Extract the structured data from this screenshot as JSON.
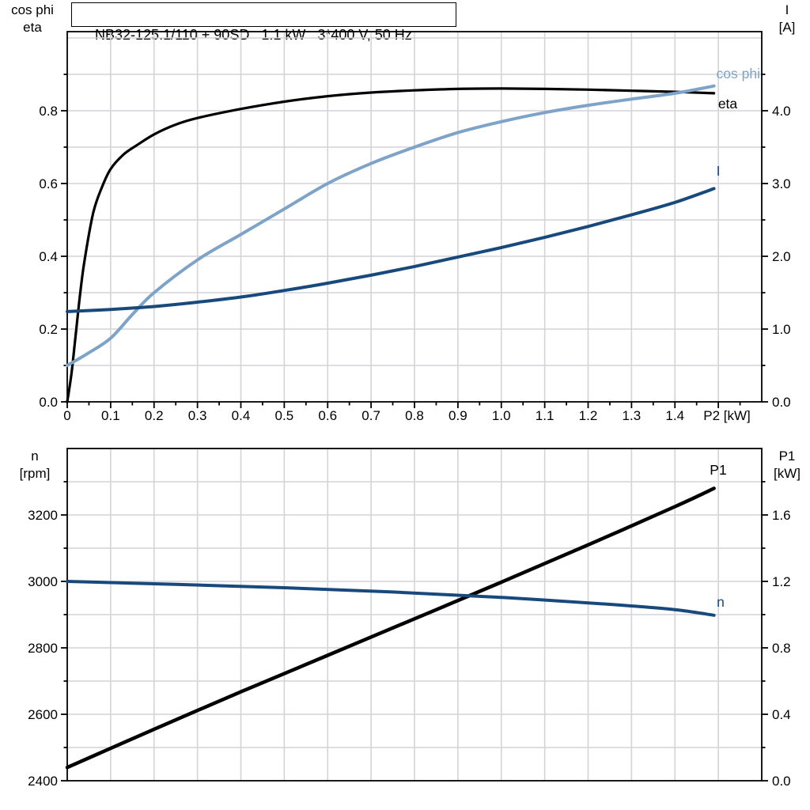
{
  "title": "NB32-125.1/110 + 90SD   1.1 kW   3*400 V, 50 Hz",
  "axis_corner_labels": {
    "top_left_line1": "cos phi",
    "top_left_line2": "eta",
    "top_right_line1": "I",
    "top_right_line2": "[A]",
    "bottom_left_line1": "n",
    "bottom_left_line2": "[rpm]",
    "bottom_right_line1": "P1",
    "bottom_right_line2": "[kW]"
  },
  "colors": {
    "black_curve": "#000000",
    "light_blue_curve": "#7EA3C8",
    "dark_blue_curve": "#17497C",
    "grid": "#D4D4D8",
    "axis": "#000000"
  },
  "chart_data": [
    {
      "name": "motor-performance",
      "type": "line",
      "xlabel": "P2 [kW]",
      "xlim": [
        0,
        1.6
      ],
      "x_ticks": {
        "values": [
          0,
          0.1,
          0.2,
          0.3,
          0.4,
          0.5,
          0.6,
          0.7,
          0.8,
          0.9,
          1.0,
          1.1,
          1.2,
          1.3,
          1.4
        ],
        "labels": [
          "0",
          "0.1",
          "0.2",
          "0.3",
          "0.4",
          "0.5",
          "0.6",
          "0.7",
          "0.8",
          "0.9",
          "1.0",
          "1.1",
          "1.2",
          "1.3",
          "1.4"
        ]
      },
      "left_axis": {
        "title": "cos phi / eta",
        "lim": [
          0,
          1.0174
        ],
        "ticks": [
          0.0,
          0.2,
          0.4,
          0.6,
          0.8
        ],
        "tick_labels": [
          "0.0",
          "0.2",
          "0.4",
          "0.6",
          "0.8"
        ]
      },
      "right_axis": {
        "title": "I [A]",
        "lim": [
          0,
          5.087
        ],
        "ticks": [
          0.0,
          1.0,
          2.0,
          3.0,
          4.0
        ],
        "tick_labels": [
          "0.0",
          "1.0",
          "2.0",
          "3.0",
          "4.0"
        ]
      },
      "grid": {
        "x_step": 0.1,
        "left_step": 0.1,
        "visible": true
      },
      "legend_position": "end-of-curve",
      "series": [
        {
          "name": "eta",
          "axis": "left",
          "color": "#000000",
          "x": [
            0,
            0.01,
            0.02,
            0.03,
            0.04,
            0.06,
            0.08,
            0.1,
            0.13,
            0.16,
            0.2,
            0.25,
            0.3,
            0.4,
            0.5,
            0.6,
            0.7,
            0.8,
            0.9,
            1.0,
            1.1,
            1.2,
            1.3,
            1.4,
            1.49
          ],
          "y": [
            0,
            0.08,
            0.19,
            0.3,
            0.39,
            0.52,
            0.59,
            0.64,
            0.68,
            0.705,
            0.735,
            0.762,
            0.78,
            0.805,
            0.825,
            0.84,
            0.85,
            0.856,
            0.86,
            0.861,
            0.86,
            0.858,
            0.855,
            0.852,
            0.848
          ]
        },
        {
          "name": "cos phi",
          "axis": "left",
          "color": "#7EA3C8",
          "x": [
            0,
            0.05,
            0.1,
            0.15,
            0.2,
            0.3,
            0.4,
            0.5,
            0.6,
            0.7,
            0.8,
            0.9,
            1.0,
            1.1,
            1.2,
            1.3,
            1.4,
            1.49
          ],
          "y": [
            0.1,
            0.135,
            0.175,
            0.24,
            0.3,
            0.39,
            0.46,
            0.53,
            0.6,
            0.655,
            0.7,
            0.74,
            0.77,
            0.795,
            0.815,
            0.832,
            0.848,
            0.868
          ]
        },
        {
          "name": "I",
          "axis": "right",
          "color": "#17497C",
          "x": [
            0,
            0.1,
            0.2,
            0.3,
            0.4,
            0.5,
            0.6,
            0.7,
            0.8,
            0.9,
            1.0,
            1.1,
            1.2,
            1.3,
            1.4,
            1.49
          ],
          "y": [
            1.24,
            1.27,
            1.31,
            1.37,
            1.44,
            1.53,
            1.63,
            1.74,
            1.86,
            1.99,
            2.12,
            2.26,
            2.41,
            2.57,
            2.74,
            2.93
          ]
        }
      ]
    },
    {
      "name": "speed-and-input-power",
      "type": "line",
      "xlabel": "",
      "xlim": [
        0,
        1.6
      ],
      "x_ticks": {
        "values": [],
        "labels": []
      },
      "left_axis": {
        "title": "n [rpm]",
        "lim": [
          2400,
          3400
        ],
        "ticks": [
          2400,
          2600,
          2800,
          3000,
          3200
        ],
        "tick_labels": [
          "2400",
          "2600",
          "2800",
          "3000",
          "3200"
        ]
      },
      "right_axis": {
        "title": "P1 [kW]",
        "lim": [
          0,
          2.0
        ],
        "ticks": [
          0.0,
          0.4,
          0.8,
          1.2,
          1.6
        ],
        "tick_labels": [
          "0.0",
          "0.4",
          "0.8",
          "1.2",
          "1.6"
        ]
      },
      "grid": {
        "x_step": 0.1,
        "left_step": 100,
        "visible": true
      },
      "legend_position": "end-of-curve",
      "series": [
        {
          "name": "P1",
          "axis": "right",
          "color": "#000000",
          "x": [
            0,
            0.2,
            0.4,
            0.6,
            0.8,
            1.0,
            1.2,
            1.4,
            1.49
          ],
          "y": [
            0.08,
            0.31,
            0.535,
            0.755,
            0.975,
            1.195,
            1.42,
            1.65,
            1.76
          ]
        },
        {
          "name": "n",
          "axis": "left",
          "color": "#17497C",
          "x": [
            0,
            0.25,
            0.5,
            0.75,
            1.0,
            1.25,
            1.4,
            1.49
          ],
          "y": [
            3000,
            2991,
            2981,
            2968,
            2952,
            2931,
            2915,
            2898
          ]
        }
      ]
    }
  ]
}
